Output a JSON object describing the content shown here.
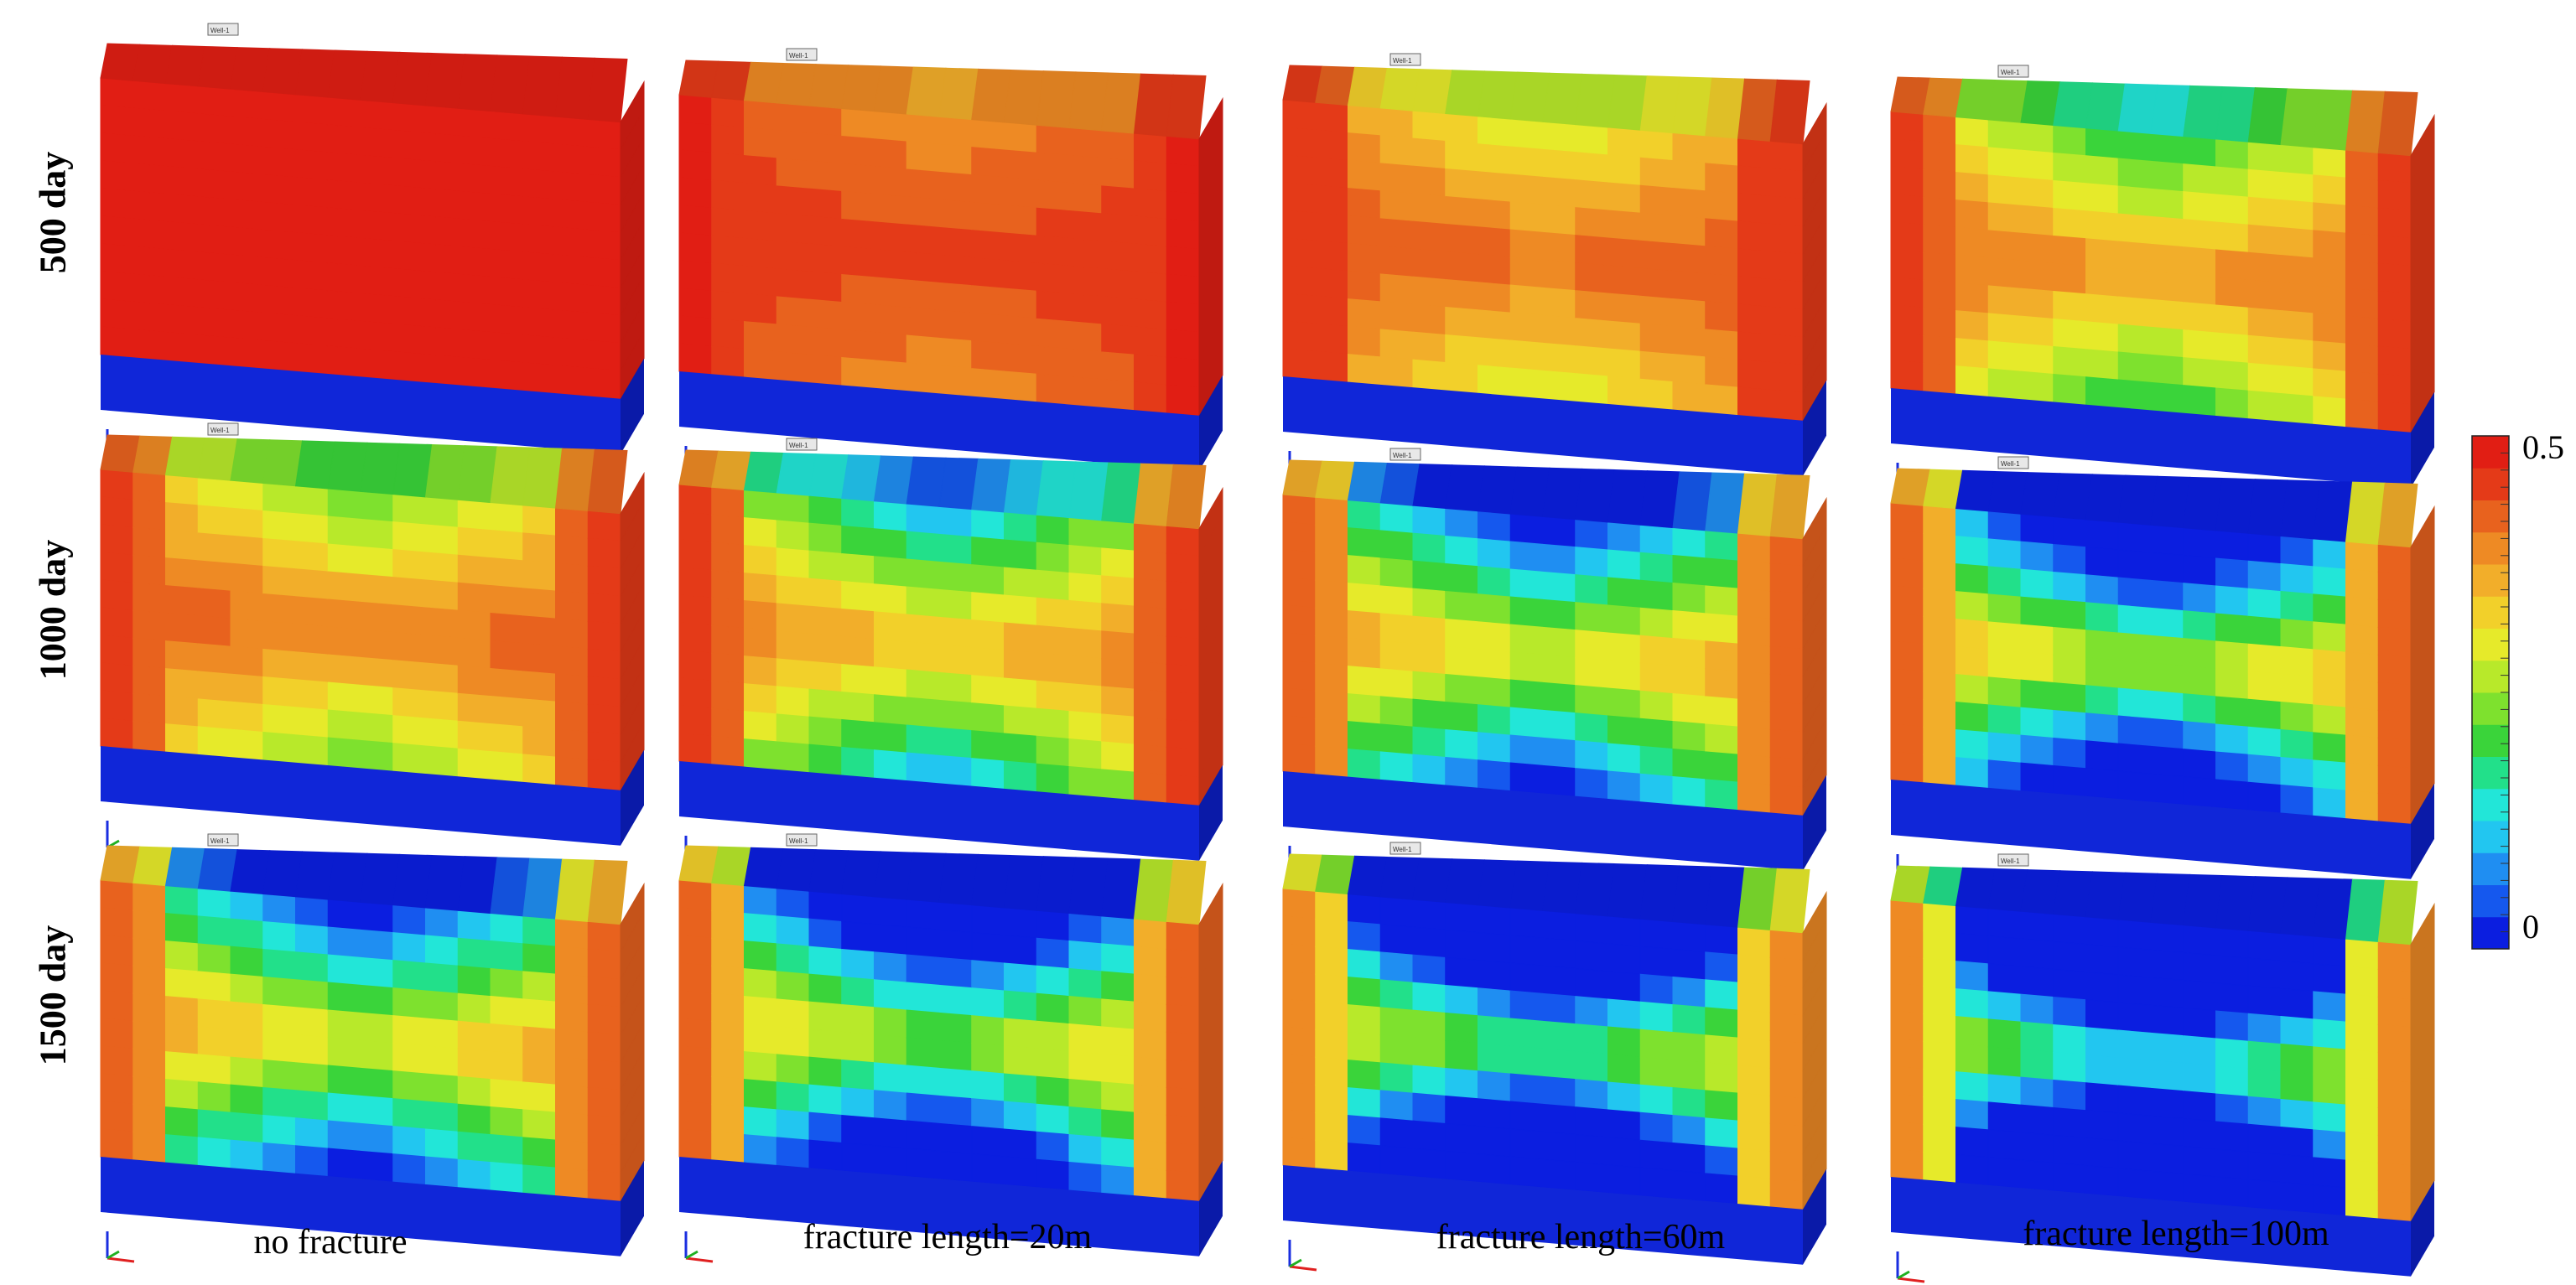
{
  "rows": [
    {
      "label": "500 day",
      "stage": 0
    },
    {
      "label": "1000 day",
      "stage": 1
    },
    {
      "label": "1500 day",
      "stage": 2
    }
  ],
  "columns": [
    {
      "label": "no fracture",
      "fracture": 0
    },
    {
      "label": "fracture length=20m",
      "fracture": 1
    },
    {
      "label": "fracture length=60m",
      "fracture": 2
    },
    {
      "label": "fracture length=100m",
      "fracture": 3
    }
  ],
  "well_tag": "Well-1",
  "colorbar": {
    "max_label": "0.5",
    "min_label": "0",
    "max": 0.5,
    "min": 0,
    "colors": [
      "#0b1ee0",
      "#1558ee",
      "#1f8ef2",
      "#22c6f0",
      "#22e6d8",
      "#22e08a",
      "#3ad43a",
      "#7ee12e",
      "#b8e92a",
      "#e6ea2a",
      "#f2d02a",
      "#f2ae2a",
      "#ee8a24",
      "#e8621e",
      "#e43a18",
      "#e11e14"
    ]
  },
  "colors": {
    "base_block": "#1026d8",
    "base_block_side": "#0a1aa8"
  }
}
